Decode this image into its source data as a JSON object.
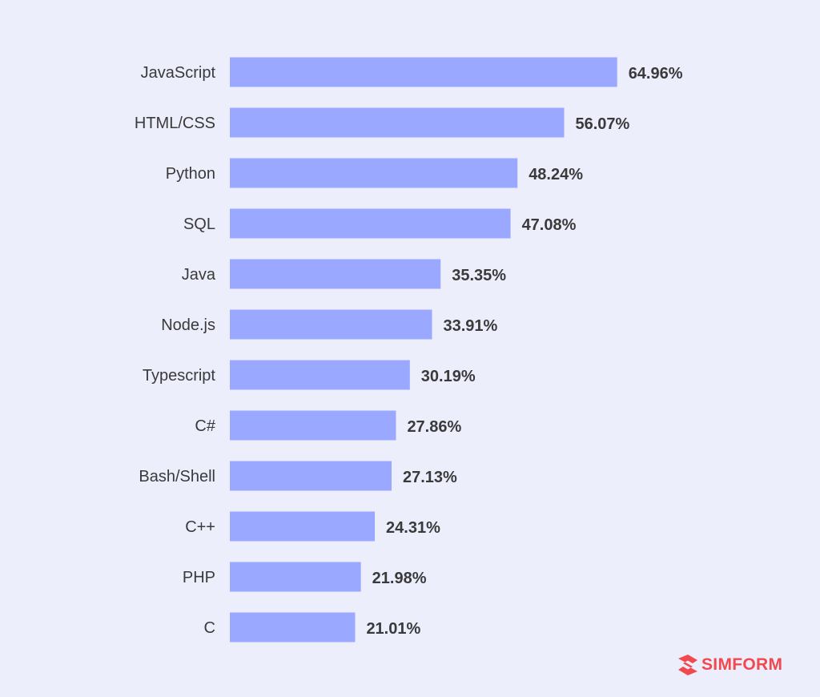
{
  "chart_data": {
    "type": "bar",
    "orientation": "horizontal",
    "categories": [
      "JavaScript",
      "HTML/CSS",
      "Python",
      "SQL",
      "Java",
      "Node.js",
      "Typescript",
      "C#",
      "Bash/Shell",
      "C++",
      "PHP",
      "C"
    ],
    "values": [
      64.96,
      56.07,
      48.24,
      47.08,
      35.35,
      33.91,
      30.19,
      27.86,
      27.13,
      24.31,
      21.98,
      21.01
    ],
    "value_labels": [
      "64.96%",
      "56.07%",
      "48.24%",
      "47.08%",
      "35.35%",
      "33.91%",
      "30.19%",
      "27.86%",
      "27.13%",
      "24.31%",
      "21.98%",
      "21.01%"
    ],
    "unit": "%",
    "title": "",
    "xlabel": "",
    "ylabel": "",
    "xlim": [
      0,
      65
    ],
    "grid": false,
    "legend": "none",
    "bar_color": "#9BA8FF",
    "background_color": "#ECEEFC",
    "text_color": "#3A3A3A"
  },
  "brand": {
    "logo_text": "SIMFORM",
    "logo_color": "#F04A4F",
    "logo_icon": "simform-logo-icon"
  }
}
